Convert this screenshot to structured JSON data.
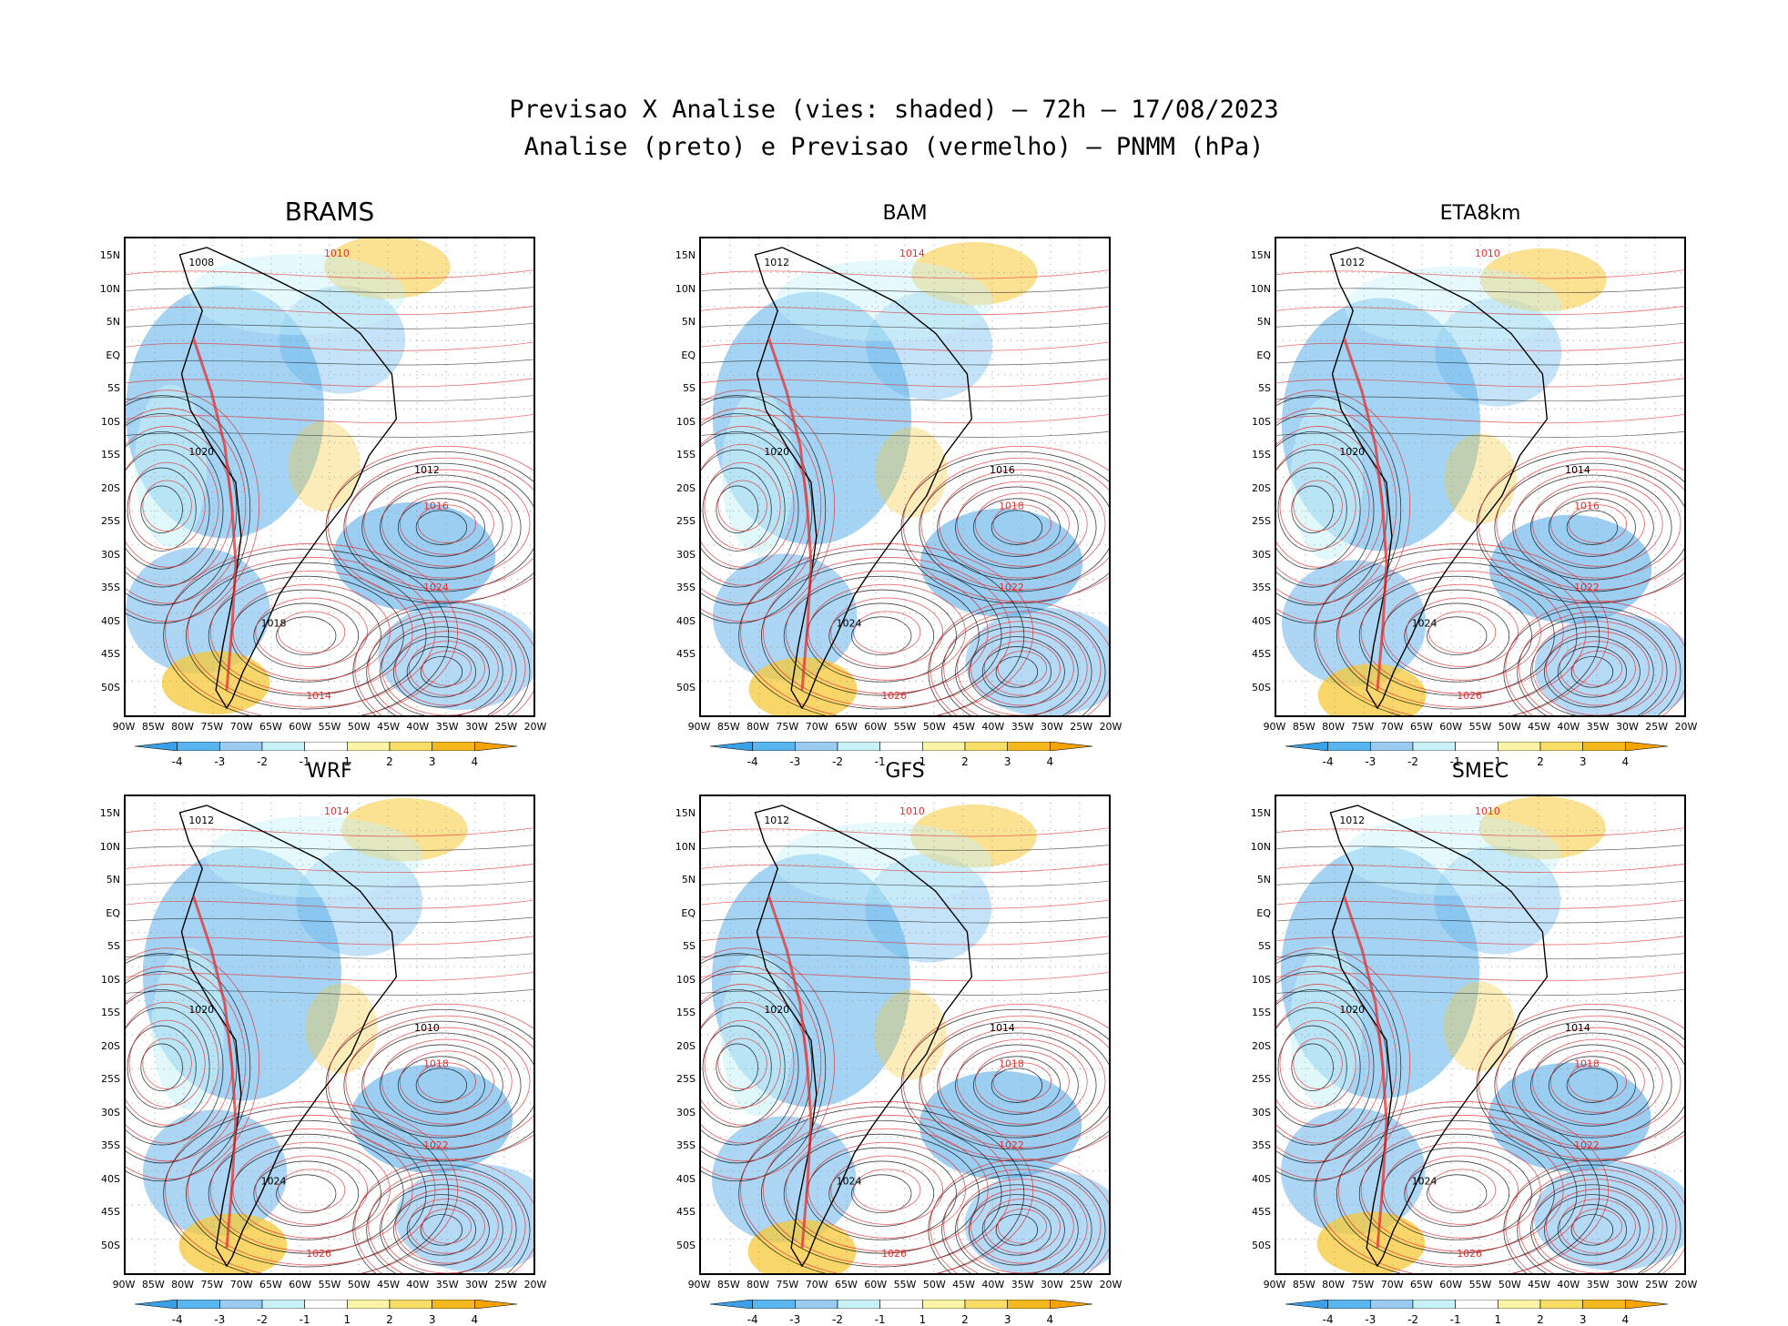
{
  "header": {
    "title_line1": "Previsao X Analise (vies: shaded) – 72h – 17/08/2023",
    "title_line2": "Analise (preto) e Previsao (vermelho) – PNMM (hPa)"
  },
  "axes": {
    "lat_labels": [
      "15N",
      "10N",
      "5N",
      "EQ",
      "5S",
      "10S",
      "15S",
      "20S",
      "25S",
      "30S",
      "35S",
      "40S",
      "45S",
      "50S"
    ],
    "lon_labels": [
      "90W",
      "85W",
      "80W",
      "75W",
      "70W",
      "65W",
      "60W",
      "55W",
      "50W",
      "45W",
      "40W",
      "35W",
      "30W",
      "25W",
      "20W"
    ]
  },
  "colorbar": {
    "labels": [
      "-4",
      "-3",
      "-2",
      "-1",
      "1",
      "2",
      "3",
      "4"
    ],
    "colors": [
      "#3aa0e8",
      "#5ab4ee",
      "#9ccbf2",
      "#c8f2f8",
      "#ffffff",
      "#fbf3a6",
      "#f8dd66",
      "#f3b81e",
      "#f5a300"
    ]
  },
  "colors": {
    "analysis_contour": "#000000",
    "forecast_contour": "#e03030",
    "negative_bias": "#5aaeea",
    "positive_bias": "#f7c838"
  },
  "panels": [
    {
      "name": "BRAMS",
      "labels": [
        "1008",
        "1010",
        "1012",
        "1016",
        "1020",
        "1024",
        "1018",
        "1014"
      ]
    },
    {
      "name": "BAM",
      "labels": [
        "1012",
        "1014",
        "1016",
        "1018",
        "1020",
        "1022",
        "1024",
        "1026"
      ]
    },
    {
      "name": "ETA8km",
      "labels": [
        "1012",
        "1010",
        "1014",
        "1016",
        "1020",
        "1022",
        "1024",
        "1026"
      ]
    },
    {
      "name": "WRF",
      "labels": [
        "1012",
        "1014",
        "1010",
        "1018",
        "1020",
        "1022",
        "1024",
        "1026"
      ]
    },
    {
      "name": "GFS",
      "labels": [
        "1012",
        "1010",
        "1014",
        "1018",
        "1020",
        "1022",
        "1024",
        "1026"
      ]
    },
    {
      "name": "SMEC",
      "labels": [
        "1012",
        "1010",
        "1014",
        "1018",
        "1020",
        "1022",
        "1024",
        "1026"
      ]
    }
  ]
}
